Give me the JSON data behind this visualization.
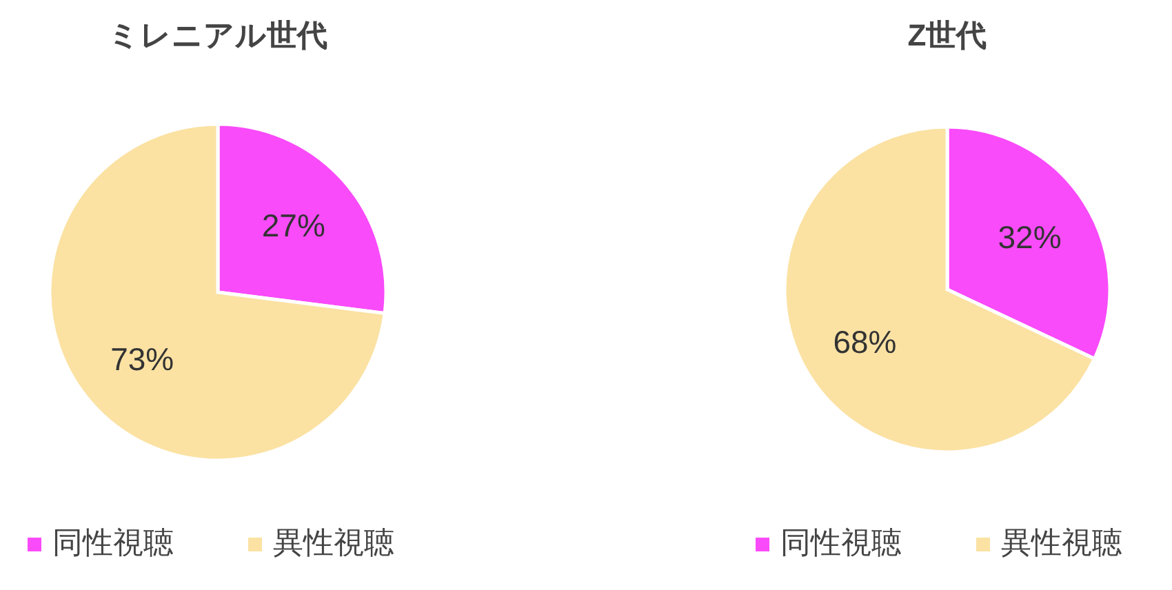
{
  "chart_data": [
    {
      "type": "pie",
      "title": "ミレニアル世代",
      "categories": [
        "同性視聴",
        "異性視聴"
      ],
      "values": [
        27,
        73
      ],
      "colors": [
        "#f94bf9",
        "#fbe2a3"
      ],
      "value_labels": [
        "27%",
        "73%"
      ],
      "legend": "bottom"
    },
    {
      "type": "pie",
      "title": "Z世代",
      "categories": [
        "同性視聴",
        "異性視聴"
      ],
      "values": [
        32,
        68
      ],
      "colors": [
        "#f94bf9",
        "#fbe2a3"
      ],
      "value_labels": [
        "32%",
        "68%"
      ],
      "legend": "bottom"
    }
  ]
}
